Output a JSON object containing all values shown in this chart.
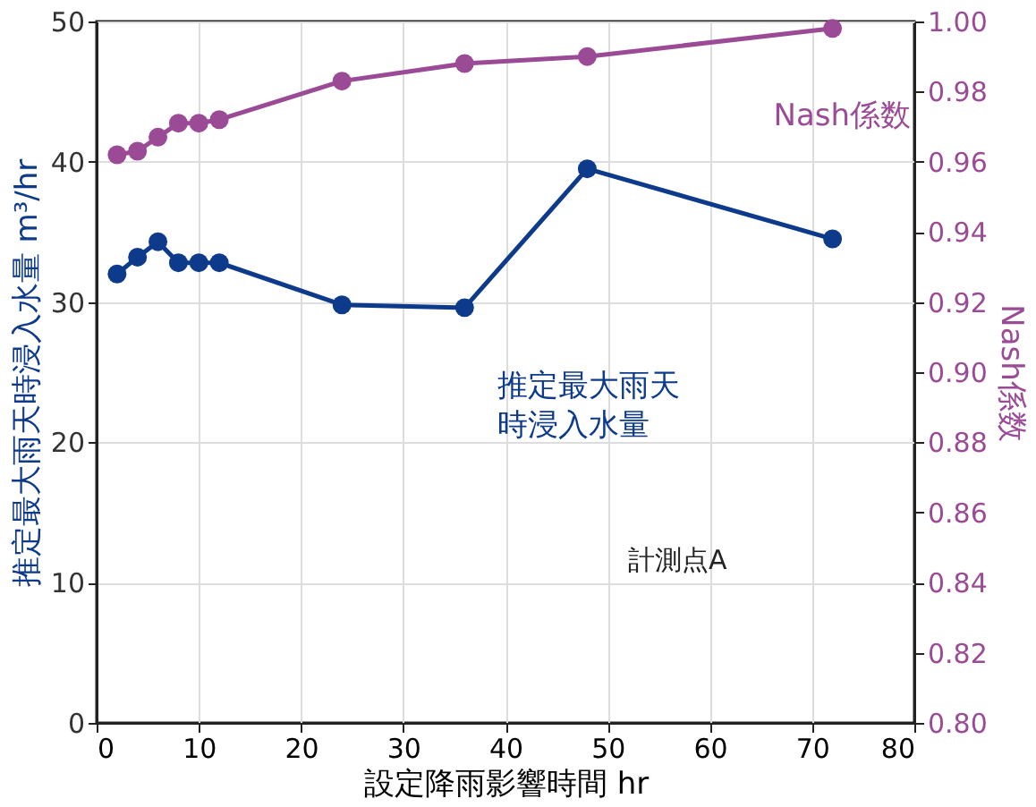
{
  "chart_data": {
    "type": "line",
    "xlabel": "設定降雨影響時間 hr",
    "ylabel": "推定最大雨天時浸入水量 m³/hr",
    "y2label": "Nash係数",
    "x": [
      2,
      4,
      6,
      8,
      10,
      12,
      24,
      36,
      48,
      72
    ],
    "series": [
      {
        "name": "推定最大雨天時浸入水量",
        "color": "#0d3a8a",
        "values": [
          32.0,
          33.2,
          34.3,
          32.8,
          32.8,
          32.8,
          29.8,
          29.6,
          39.5,
          34.5
        ]
      },
      {
        "name": "Nash係数",
        "color": "#9b4b96",
        "axis": "y2",
        "values": [
          0.962,
          0.963,
          0.967,
          0.971,
          0.971,
          0.972,
          0.983,
          0.988,
          0.99,
          0.998
        ]
      }
    ],
    "xlim": [
      0,
      80
    ],
    "xticks": [
      0,
      10,
      20,
      30,
      40,
      50,
      60,
      70,
      80
    ],
    "ylim": [
      0,
      50
    ],
    "yticks": [
      0,
      10,
      20,
      30,
      40,
      50
    ],
    "y2lim": [
      0.8,
      1.0
    ],
    "y2ticks": [
      {
        "value": 0.8,
        "label": "0.80"
      },
      {
        "value": 0.82,
        "label": "0.82"
      },
      {
        "value": 0.84,
        "label": "0.84"
      },
      {
        "value": 0.86,
        "label": "0.86"
      },
      {
        "value": 0.88,
        "label": "0.88"
      },
      {
        "value": 0.9,
        "label": "0.90"
      },
      {
        "value": 0.92,
        "label": "0.92"
      },
      {
        "value": 0.94,
        "label": "0.94"
      },
      {
        "value": 0.96,
        "label": "0.96"
      },
      {
        "value": 0.98,
        "label": "0.98"
      },
      {
        "value": 1.0,
        "label": "1.00"
      }
    ],
    "annotations": [
      "計測点A"
    ],
    "grid": true,
    "marker": "circle",
    "line_style": "solid"
  }
}
